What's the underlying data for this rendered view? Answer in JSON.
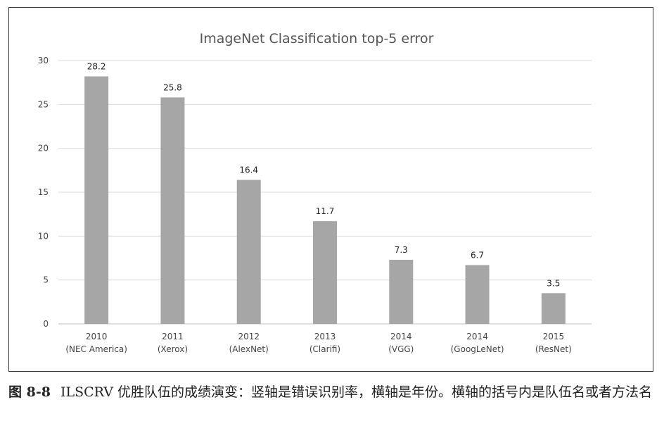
{
  "chart_data": {
    "type": "bar",
    "title": "ImageNet Classification top-5 error",
    "xlabel": "",
    "ylabel": "",
    "ylim": [
      0,
      30
    ],
    "yticks": [
      0,
      5,
      10,
      15,
      20,
      25,
      30
    ],
    "grid": true,
    "legend": "none",
    "bar_color": "#a6a6a6",
    "categories": [
      {
        "year": "2010",
        "name": "(NEC America)"
      },
      {
        "year": "2011",
        "name": "(Xerox)"
      },
      {
        "year": "2012",
        "name": "(AlexNet)"
      },
      {
        "year": "2013",
        "name": "(Clarifi)"
      },
      {
        "year": "2014",
        "name": "(VGG)"
      },
      {
        "year": "2014",
        "name": "(GoogLeNet)"
      },
      {
        "year": "2015",
        "name": "(ResNet)"
      }
    ],
    "values": [
      28.2,
      25.8,
      16.4,
      11.7,
      7.3,
      6.7,
      3.5
    ]
  },
  "caption": {
    "label": "图 8-8",
    "text": "ILSCRV 优胜队伍的成绩演变：竖轴是错误识别率，横轴是年份。横轴的括号内是队伍名或者方法名"
  }
}
